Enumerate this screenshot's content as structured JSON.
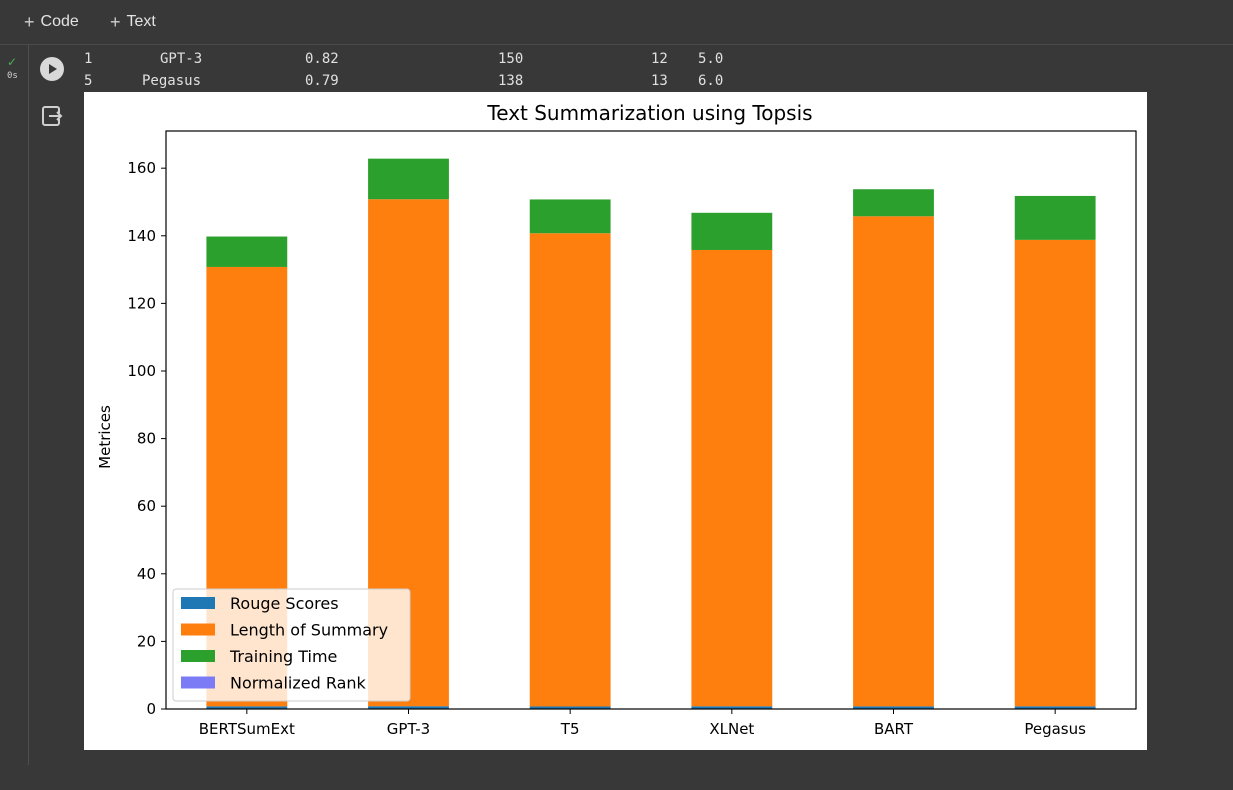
{
  "toolbar": {
    "code_label": "Code",
    "text_label": "Text"
  },
  "cell": {
    "status_time": "0s",
    "output_rows": [
      {
        "index": "1",
        "model": "GPT-3",
        "rouge": "0.82",
        "length": "150",
        "time": "12",
        "rank": "5.0"
      },
      {
        "index": "5",
        "model": "Pegasus",
        "rouge": "0.79",
        "length": "138",
        "time": "13",
        "rank": "6.0"
      }
    ]
  },
  "chart_data": {
    "type": "bar",
    "stacked": true,
    "title": "Text Summarization using Topsis",
    "xlabel": "",
    "ylabel": "Metrices",
    "categories": [
      "BERTSumExt",
      "GPT-3",
      "T5",
      "XLNet",
      "BART",
      "Pegasus"
    ],
    "ylim": [
      0,
      171
    ],
    "yticks": [
      0,
      20,
      40,
      60,
      80,
      100,
      120,
      140,
      160
    ],
    "grid": false,
    "legend_position": "lower-left",
    "series": [
      {
        "name": "Rouge Scores",
        "color": "#1f77b4",
        "values": [
          0.78,
          0.82,
          0.75,
          0.8,
          0.77,
          0.79
        ]
      },
      {
        "name": "Length of Summary",
        "color": "#ff7f0e",
        "values": [
          130,
          150,
          140,
          135,
          145,
          138
        ]
      },
      {
        "name": "Training Time",
        "color": "#2ca02c",
        "values": [
          9,
          12,
          10,
          11,
          8,
          13
        ]
      },
      {
        "name": "Normalized Rank",
        "color": "#7b7bf5",
        "values": [
          0.0,
          0.0,
          0.0,
          0.0,
          0.0,
          0.0
        ]
      }
    ]
  }
}
